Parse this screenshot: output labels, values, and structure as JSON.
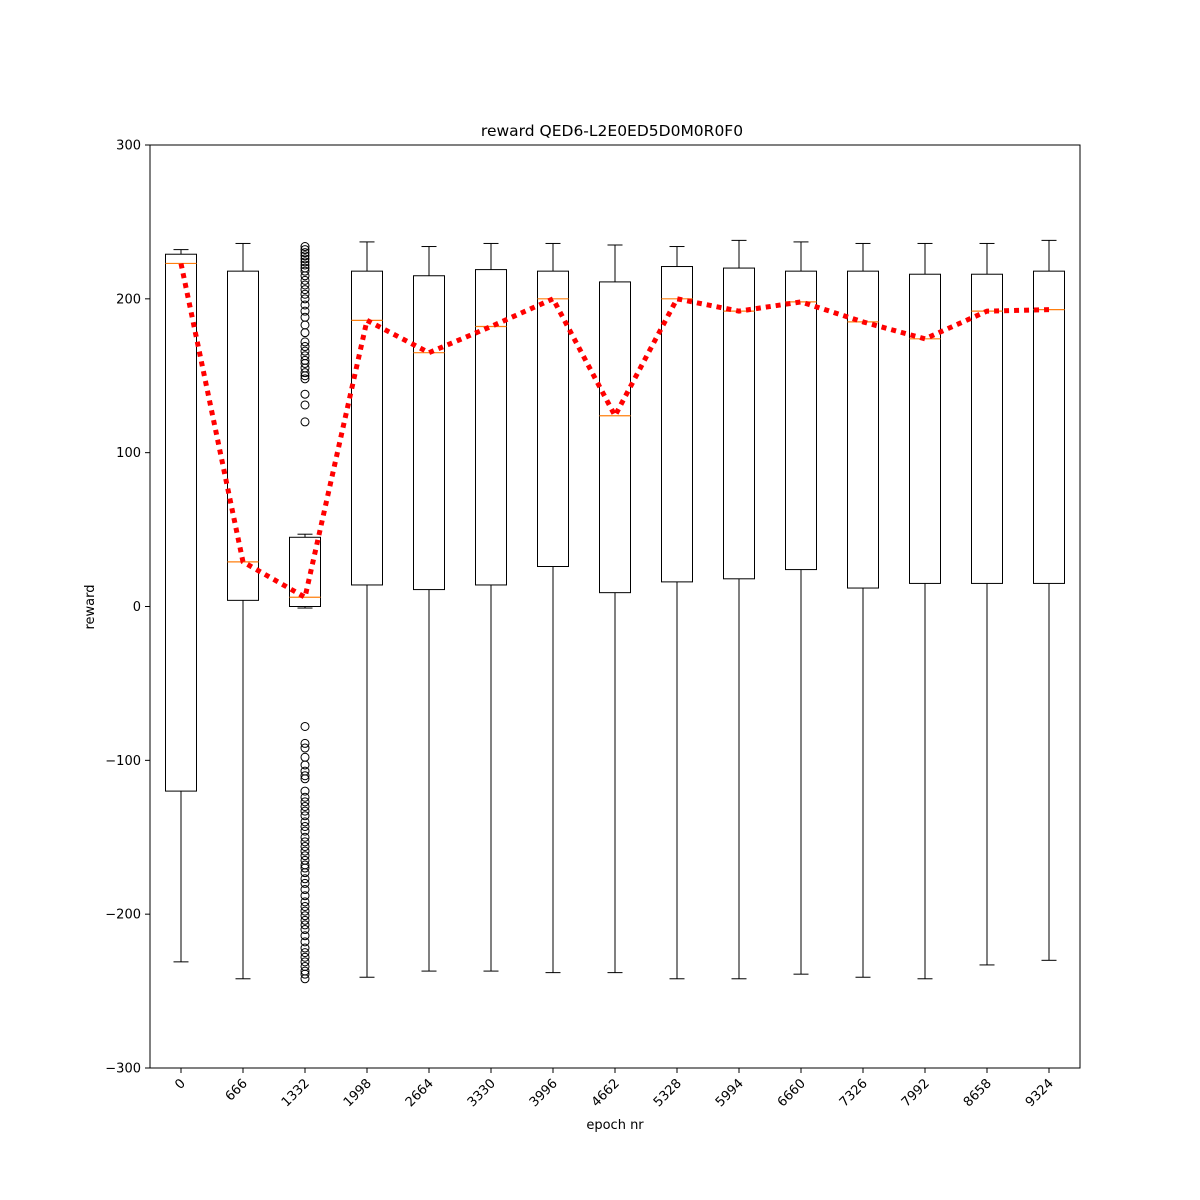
{
  "chart_data": {
    "type": "box",
    "title": "reward QED6-L2E0ED5D0M0R0F0",
    "xlabel": "epoch nr",
    "ylabel": "reward",
    "ylim": [
      -300,
      300
    ],
    "yticks": [
      -300,
      -200,
      -100,
      0,
      100,
      200,
      300
    ],
    "ytick_labels": [
      "−300",
      "−200",
      "−100",
      "0",
      "100",
      "200",
      "300"
    ],
    "grid": false,
    "x_tick_rotation_deg": 45,
    "colors": {
      "box": "#000000",
      "median": "#ff7f0e",
      "mean_line": "#ff0000"
    },
    "categories": [
      "0",
      "666",
      "1332",
      "1998",
      "2664",
      "3330",
      "3996",
      "4662",
      "5328",
      "5994",
      "6660",
      "7326",
      "7992",
      "8658",
      "9324"
    ],
    "boxes": [
      {
        "whislo": -231,
        "q1": -120,
        "med": 223,
        "q3": 229,
        "whishi": 232,
        "fliers": []
      },
      {
        "whislo": -242,
        "q1": 4,
        "med": 29,
        "q3": 218,
        "whishi": 236,
        "fliers": []
      },
      {
        "whislo": -1,
        "q1": 0,
        "med": 6,
        "q3": 45,
        "whishi": 47,
        "fliers": [
          120,
          131,
          138,
          148,
          150,
          152,
          155,
          158,
          160,
          163,
          166,
          169,
          172,
          178,
          183,
          188,
          192,
          196,
          200,
          203,
          206,
          209,
          212,
          215,
          218,
          220,
          222,
          224,
          226,
          228,
          230,
          232,
          234,
          -78,
          -89,
          -92,
          -98,
          -103,
          -107,
          -110,
          -112,
          -120,
          -124,
          -127,
          -130,
          -133,
          -136,
          -140,
          -143,
          -146,
          -150,
          -153,
          -156,
          -159,
          -162,
          -165,
          -168,
          -170,
          -173,
          -177,
          -180,
          -184,
          -188,
          -192,
          -195,
          -198,
          -201,
          -204,
          -207,
          -210,
          -214,
          -218,
          -222,
          -225,
          -228,
          -231,
          -234,
          -237,
          -239,
          -242
        ]
      },
      {
        "whislo": -241,
        "q1": 14,
        "med": 186,
        "q3": 218,
        "whishi": 237,
        "fliers": []
      },
      {
        "whislo": -237,
        "q1": 11,
        "med": 165,
        "q3": 215,
        "whishi": 234,
        "fliers": []
      },
      {
        "whislo": -237,
        "q1": 14,
        "med": 182,
        "q3": 219,
        "whishi": 236,
        "fliers": []
      },
      {
        "whislo": -238,
        "q1": 26,
        "med": 200,
        "q3": 218,
        "whishi": 236,
        "fliers": []
      },
      {
        "whislo": -238,
        "q1": 9,
        "med": 124,
        "q3": 211,
        "whishi": 235,
        "fliers": []
      },
      {
        "whislo": -242,
        "q1": 16,
        "med": 200,
        "q3": 221,
        "whishi": 234,
        "fliers": []
      },
      {
        "whislo": -242,
        "q1": 18,
        "med": 192,
        "q3": 220,
        "whishi": 238,
        "fliers": []
      },
      {
        "whislo": -239,
        "q1": 24,
        "med": 198,
        "q3": 218,
        "whishi": 237,
        "fliers": []
      },
      {
        "whislo": -241,
        "q1": 12,
        "med": 185,
        "q3": 218,
        "whishi": 236,
        "fliers": []
      },
      {
        "whislo": -242,
        "q1": 15,
        "med": 174,
        "q3": 216,
        "whishi": 236,
        "fliers": []
      },
      {
        "whislo": -233,
        "q1": 15,
        "med": 192,
        "q3": 216,
        "whishi": 236,
        "fliers": []
      },
      {
        "whislo": -230,
        "q1": 15,
        "med": 193,
        "q3": 218,
        "whishi": 238,
        "fliers": []
      }
    ],
    "line": {
      "style": "dotted",
      "values": [
        223,
        29,
        6,
        186,
        165,
        182,
        200,
        124,
        200,
        192,
        198,
        185,
        174,
        192,
        193
      ]
    }
  }
}
